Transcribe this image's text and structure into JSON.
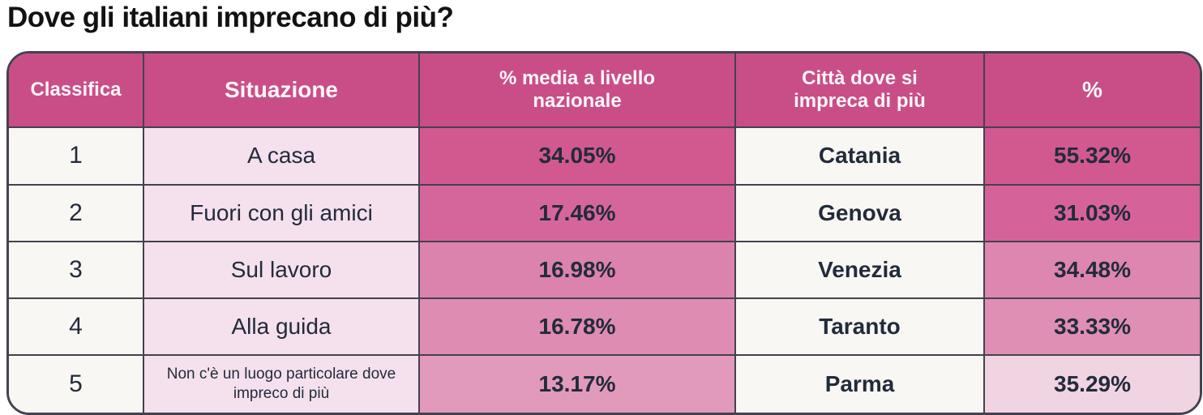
{
  "title": "Dove gli italiani imprecano di più?",
  "chart_data": {
    "type": "table",
    "title": "Dove gli italiani imprecano di più?",
    "columns": [
      "Classifica",
      "Situazione",
      "% media a livello nazionale",
      "Città dove si impreca di più",
      "%"
    ],
    "rows": [
      {
        "classifica": "1",
        "situazione": "A casa",
        "media": "34.05%",
        "citta": "Catania",
        "pct": "55.32%"
      },
      {
        "classifica": "2",
        "situazione": "Fuori con gli amici",
        "media": "17.46%",
        "citta": "Genova",
        "pct": "31.03%"
      },
      {
        "classifica": "3",
        "situazione": "Sul lavoro",
        "media": "16.98%",
        "citta": "Venezia",
        "pct": "34.48%"
      },
      {
        "classifica": "4",
        "situazione": "Alla guida",
        "media": "16.78%",
        "citta": "Taranto",
        "pct": "33.33%"
      },
      {
        "classifica": "5",
        "situazione": "Non c'è un luogo particolare dove impreco di più",
        "media": "13.17%",
        "citta": "Parma",
        "pct": "35.29%"
      }
    ],
    "media_values_numeric": [
      34.05,
      17.46,
      16.98,
      16.78,
      13.17
    ],
    "city_values_numeric": [
      55.32,
      31.03,
      34.48,
      33.33,
      35.29
    ]
  },
  "header": {
    "classifica": "Classifica",
    "situazione": "Situazione",
    "media": "% media a livello nazionale",
    "citta": "Città dove si impreca di più",
    "pct": "%"
  },
  "rows": [
    {
      "classifica": "1",
      "situazione": "A casa",
      "media": "34.05%",
      "citta": "Catania",
      "pct": "55.32%"
    },
    {
      "classifica": "2",
      "situazione": "Fuori con gli amici",
      "media": "17.46%",
      "citta": "Genova",
      "pct": "31.03%"
    },
    {
      "classifica": "3",
      "situazione": "Sul lavoro",
      "media": "16.98%",
      "citta": "Venezia",
      "pct": "34.48%"
    },
    {
      "classifica": "4",
      "situazione": "Alla guida",
      "media": "16.78%",
      "citta": "Taranto",
      "pct": "33.33%"
    },
    {
      "classifica": "5",
      "situazione": "Non c'è un luogo particolare dove impreco di più",
      "media": "13.17%",
      "citta": "Parma",
      "pct": "35.29%"
    }
  ],
  "colors": {
    "header_bg": "#c94e87",
    "header_text": "#fdf5f9",
    "body_text": "#222b3b",
    "grid_line": "#45414e",
    "neutral_cell": "#f9f7f4",
    "situazione_cell": "#f4e1ed",
    "media_shades": [
      "#d15990",
      "#d5669c",
      "#dc83ad",
      "#de8cb2",
      "#e29aba"
    ],
    "pct_shades": [
      "#d15990",
      "#d5639a",
      "#dd86af",
      "#df8fb4",
      "#f1d4e2"
    ]
  }
}
